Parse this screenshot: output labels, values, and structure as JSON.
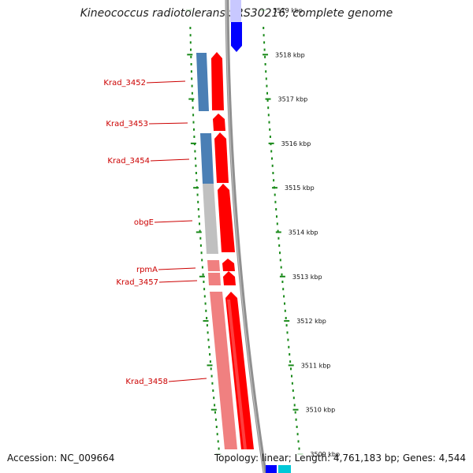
{
  "title": "Kineococcus radiotolerans SRS30216, complete genome",
  "footer": {
    "accession": "Accession: NC_009664",
    "stats": "Topology: linear; Length: 4,761,183 bp; Genes: 4,544"
  },
  "colors": {
    "backbone": "#808080",
    "cds_forward": "#ff0000",
    "cds_reverse": "#0000ff",
    "cds_reverse_alt": "#00c8d8",
    "gene_blue": "#4a7fb5",
    "gene_grey": "#bfbfbf",
    "gene_pink": "#f08080",
    "label": "#cc0000",
    "tick": "#1a8a1a"
  },
  "ticks": [
    {
      "label": "3519 kbp",
      "faded": true
    },
    {
      "label": "3518 kbp"
    },
    {
      "label": "3517 kbp"
    },
    {
      "label": "3516 kbp"
    },
    {
      "label": "3515 kbp"
    },
    {
      "label": "3514 kbp"
    },
    {
      "label": "3513 kbp"
    },
    {
      "label": "3512 kbp"
    },
    {
      "label": "3511 kbp"
    },
    {
      "label": "3510 kbp"
    },
    {
      "label": "3509 kbp",
      "faded": true
    }
  ],
  "genes": [
    {
      "label": "Krad_3452",
      "color": "blue"
    },
    {
      "label": "Krad_3453",
      "color": "none"
    },
    {
      "label": "Krad_3454",
      "color": "blue"
    },
    {
      "label": "obgE",
      "color": "grey"
    },
    {
      "label": "rpmA",
      "color": "pink"
    },
    {
      "label": "Krad_3457",
      "color": "pink"
    },
    {
      "label": "Krad_3458",
      "color": "pink"
    }
  ]
}
